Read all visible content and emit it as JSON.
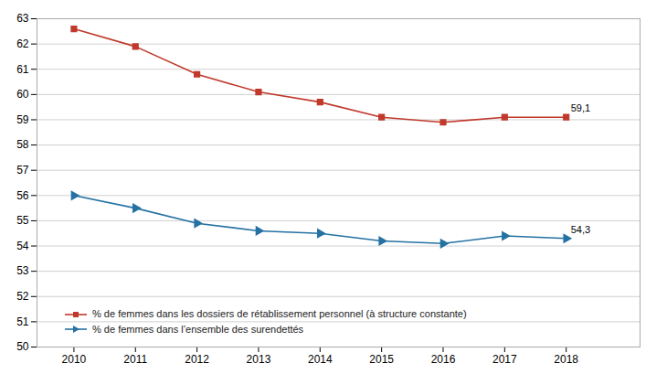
{
  "chart_data": {
    "type": "line",
    "x": [
      2010,
      2011,
      2012,
      2013,
      2014,
      2015,
      2016,
      2017,
      2018
    ],
    "series": [
      {
        "name": "% de femmes dans les dossiers de rétablissement personnel (à structure constante)",
        "color": "#c0392b",
        "marker": "square",
        "values": [
          62.6,
          61.9,
          60.8,
          60.1,
          59.7,
          59.1,
          58.9,
          59.1,
          59.1
        ]
      },
      {
        "name": "% de femmes dans l’ensemble des surendettés",
        "color": "#2471a3",
        "marker": "triangle_right",
        "values": [
          56.0,
          55.5,
          54.9,
          54.6,
          54.5,
          54.2,
          54.1,
          54.4,
          54.3
        ]
      }
    ],
    "annotations": [
      {
        "text": "59,1",
        "x": 2018,
        "y": 59.1
      },
      {
        "text": "54,3",
        "x": 2018,
        "y": 54.3
      }
    ],
    "xlim": [
      2009.4,
      2019.2
    ],
    "xticks": [
      2010,
      2011,
      2012,
      2013,
      2014,
      2015,
      2016,
      2017,
      2018
    ],
    "ylim": [
      50,
      63
    ],
    "yticks": [
      50,
      51,
      52,
      53,
      54,
      55,
      56,
      57,
      58,
      59,
      60,
      61,
      62,
      63
    ],
    "grid": true,
    "legend": "lower left"
  }
}
